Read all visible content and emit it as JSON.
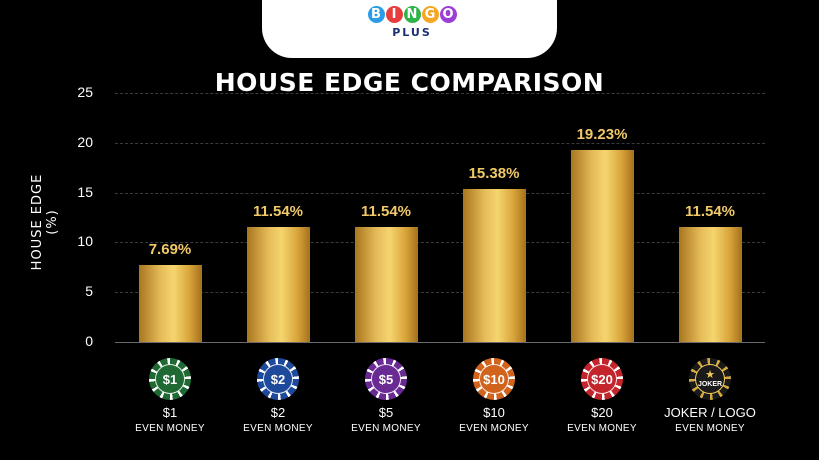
{
  "brand": {
    "letters": [
      "B",
      "I",
      "N",
      "G",
      "O"
    ],
    "letter_colors": [
      "#2b9de8",
      "#e83d3d",
      "#2db34a",
      "#f5a623",
      "#9b3fd6"
    ],
    "sub": "PLUS"
  },
  "chart_data": {
    "type": "bar",
    "title": "HOUSE EDGE COMPARISON",
    "xlabel": "",
    "ylabel": "HOUSE EDGE (%)",
    "ylim": [
      0,
      25
    ],
    "yticks": [
      "25",
      "20",
      "15",
      "10",
      "5",
      "0"
    ],
    "grid": true,
    "categories": [
      "$1",
      "$2",
      "$5",
      "$10",
      "$20",
      "JOKER / LOGO"
    ],
    "category_sub": [
      "EVEN MONEY",
      "EVEN MONEY",
      "EVEN MONEY",
      "EVEN MONEY",
      "EVEN MONEY",
      "EVEN MONEY"
    ],
    "values": [
      7.69,
      11.54,
      11.54,
      15.38,
      19.23,
      11.54
    ],
    "value_labels": [
      "7.69%",
      "11.54%",
      "11.54%",
      "15.38%",
      "19.23%",
      "11.54%"
    ],
    "chips": [
      {
        "label": "$1",
        "color": "#1f6a33",
        "icon": "green-chip-icon"
      },
      {
        "label": "$2",
        "color": "#1e4a9c",
        "icon": "blue-chip-icon"
      },
      {
        "label": "$5",
        "color": "#6a2a94",
        "icon": "purple-chip-icon"
      },
      {
        "label": "$10",
        "color": "#d2631c",
        "icon": "orange-chip-icon"
      },
      {
        "label": "$20",
        "color": "#c4242b",
        "icon": "red-chip-icon"
      },
      {
        "label": "JOKER",
        "color": "#1a1a1a",
        "icon": "joker-chip-icon"
      }
    ],
    "bar_color": "#e6bc5a",
    "label_color": "#f1c969"
  }
}
